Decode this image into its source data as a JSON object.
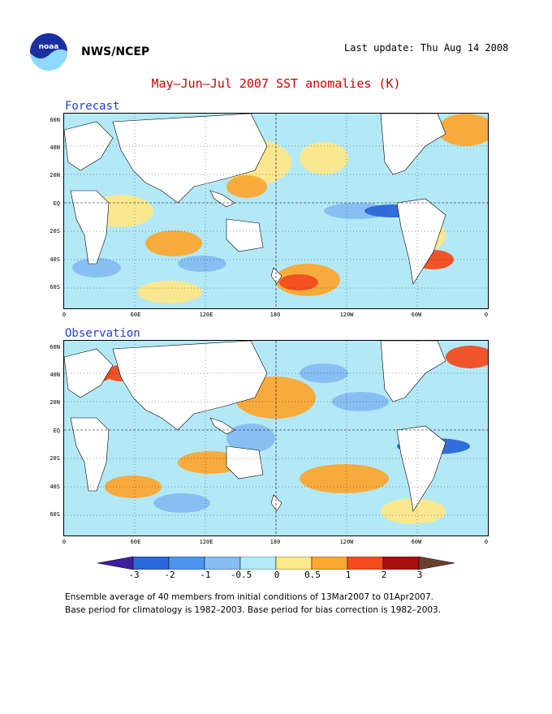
{
  "header": {
    "org": "NWS/NCEP",
    "last_update": "Last update: Thu Aug 14 2008",
    "title": "May–Jun–Jul 2007 SST anomalies (K)"
  },
  "logo": {
    "name": "noaa-logo",
    "text": "noaa"
  },
  "panels": [
    {
      "label": "Forecast"
    },
    {
      "label": "Observation"
    }
  ],
  "axes": {
    "y_labels": [
      "60N",
      "40N",
      "20N",
      "EQ",
      "20S",
      "40S",
      "60S"
    ],
    "x_labels": [
      "0",
      "60E",
      "120E",
      "180",
      "120W",
      "60W",
      "0"
    ]
  },
  "colorbar": {
    "labels": [
      "-3",
      "-2",
      "-1",
      "-0.5",
      "0",
      "0.5",
      "1",
      "2",
      "3"
    ],
    "colors": [
      "#3d1e9e",
      "#2a67d8",
      "#4c95ee",
      "#86bdf2",
      "#b3e9f7",
      "#fde88a",
      "#fba833",
      "#f34c1f",
      "#a60e0e",
      "#6b3f30"
    ]
  },
  "colors": {
    "land": "#ffffff",
    "strong_cool": "#2a67d8",
    "cool": "#86bdf2",
    "weak_cool": "#b3e9f7",
    "weak_warm": "#fde88a",
    "warm": "#fba833",
    "hot": "#f34c1f",
    "title": "#cc0000",
    "panel_label": "#1e3fd8"
  },
  "footnotes": [
    "Ensemble average of 40 members from initial conditions of 13Mar2007 to 01Apr2007.",
    "Base period for climatology is 1982–2003. Base period for bias correction is 1982–2003."
  ]
}
